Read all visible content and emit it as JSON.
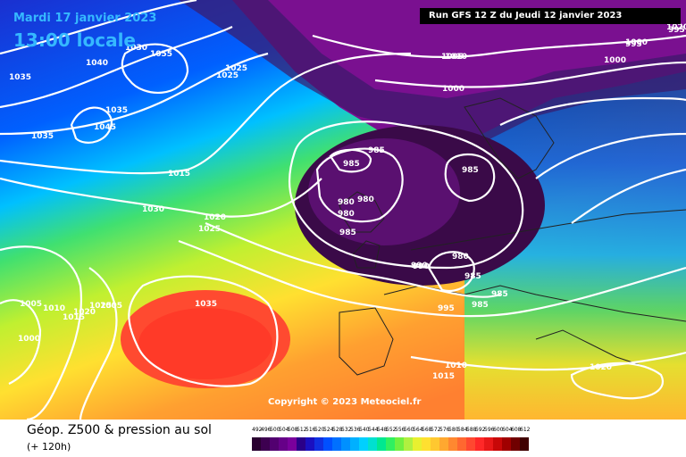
{
  "header": {
    "date": "Mardi 17 janvier 2023",
    "local_time": "13:00 locale",
    "run": "Run GFS 12 Z du Jeudi 12 janvier 2023"
  },
  "copyright": "Copyright © 2023 Meteociel.fr",
  "footer": {
    "title": "Géop. Z500 & pression au sol",
    "lead": "(+ 120h)"
  },
  "legend": {
    "values": [
      "492",
      "496",
      "500",
      "504",
      "508",
      "512",
      "516",
      "520",
      "524",
      "528",
      "532",
      "536",
      "540",
      "544",
      "548",
      "552",
      "556",
      "560",
      "564",
      "568",
      "572",
      "576",
      "580",
      "584",
      "588",
      "592",
      "596",
      "600",
      "604",
      "608",
      "612"
    ],
    "colors": [
      "#2a0030",
      "#3d0050",
      "#520070",
      "#660088",
      "#7a009c",
      "#2a0088",
      "#1a10c0",
      "#1030e0",
      "#0050ff",
      "#0070ff",
      "#0090ff",
      "#00b0ff",
      "#00d0ff",
      "#00e0d0",
      "#00e890",
      "#30f060",
      "#70f040",
      "#b0f040",
      "#e8f030",
      "#ffe030",
      "#ffc830",
      "#ffa830",
      "#ff8830",
      "#ff6830",
      "#ff4830",
      "#ff2828",
      "#e81818",
      "#c80808",
      "#a00000",
      "#700000",
      "#400000"
    ]
  },
  "pressure_labels": [
    "1055",
    "1045",
    "1040",
    "1035",
    "1035",
    "1035",
    "1030",
    "1025",
    "1025",
    "1020",
    "1015",
    "1010",
    "1005",
    "1000",
    "1000",
    "995",
    "995",
    "990",
    "985",
    "985",
    "985",
    "985",
    "980",
    "980",
    "980",
    "980",
    "1030",
    "1025",
    "1020",
    "1015",
    "1010",
    "1005",
    "1000",
    "1035",
    "1025",
    "1020",
    "1015",
    "1010",
    "1020",
    "985",
    "985",
    "995",
    "1005",
    "1000",
    "990",
    "985"
  ],
  "map": {
    "colors": {
      "deep_low": "#3a0a48",
      "low": "#5a1070",
      "purple": "#7a1090",
      "dark_blue": "#1020a0",
      "blue": "#0040e0",
      "light_blue": "#0090ff",
      "cyan": "#00d0ff",
      "green": "#40e060",
      "yellow": "#f0f030",
      "orange": "#ffa030",
      "red": "#ff5030",
      "isobar": "#ffffff",
      "coast": "#222222"
    }
  }
}
